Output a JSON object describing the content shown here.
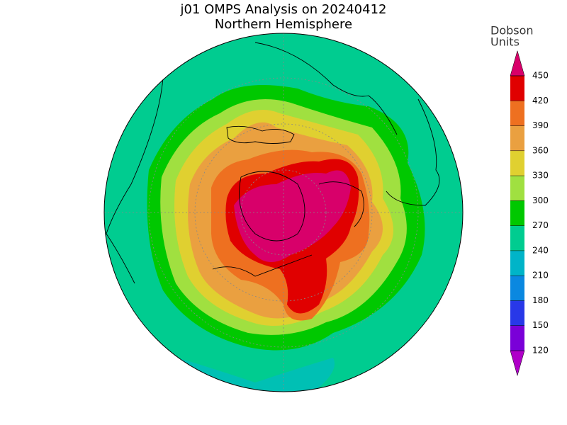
{
  "title": "j01 OMPS Analysis on 20240412",
  "subtitle": "Northern Hemisphere",
  "colorbar": {
    "label": [
      "Dobson",
      "Units"
    ],
    "ticks": [
      120,
      150,
      180,
      210,
      240,
      270,
      300,
      330,
      360,
      390,
      420,
      450
    ],
    "colors": [
      "#b000c8",
      "#7a00d8",
      "#2838e8",
      "#0a88e0",
      "#00b4c8",
      "#00cc90",
      "#00c800",
      "#a0e040",
      "#e0d030",
      "#eaa040",
      "#ee7020",
      "#e00000",
      "#d8006a"
    ]
  }
}
